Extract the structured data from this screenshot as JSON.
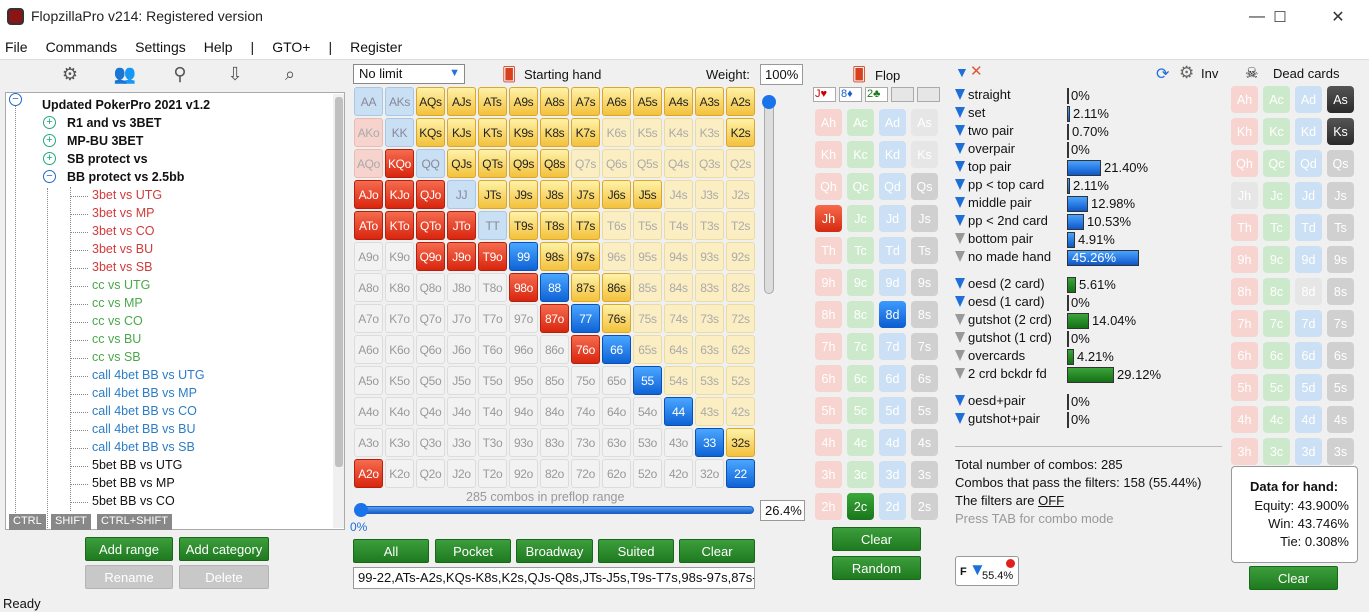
{
  "window": {
    "title": "FlopzillaPro v214: Registered version",
    "minimize": "—",
    "maximize": "☐",
    "close": "✕"
  },
  "menu": [
    "File",
    "Commands",
    "Settings",
    "Help",
    "|",
    "GTO+",
    "|",
    "Register"
  ],
  "status": "Ready",
  "tree": {
    "root": "Updated PokerPro 2021 v1.2",
    "groups": [
      "R1 and vs 3BET",
      "MP-BU 3BET",
      "SB protect vs",
      "BB protect vs 2.5bb"
    ],
    "red": [
      "3bet vs UTG",
      "3bet vs MP",
      "3bet vs CO",
      "3bet vs BU",
      "3bet vs SB"
    ],
    "green": [
      "cc vs UTG",
      "cc vs MP",
      "cc vs CO",
      "cc vs BU",
      "cc vs SB"
    ],
    "blue": [
      "call 4bet BB vs UTG",
      "call 4bet BB vs MP",
      "call 4bet BB vs CO",
      "call 4bet BB vs BU",
      "call 4bet BB vs SB"
    ],
    "black": [
      "5bet BB vs UTG",
      "5bet BB vs MP",
      "5bet BB vs CO"
    ]
  },
  "keys": [
    "CTRL",
    "SHIFT",
    "CTRL+SHIFT"
  ],
  "left_buttons": {
    "add_range": "Add range",
    "add_category": "Add category",
    "rename": "Rename",
    "delete": "Delete"
  },
  "range": {
    "limit": "No limit",
    "starting_hand": "Starting hand",
    "weight_label": "Weight:",
    "weight": "100%",
    "combos_caption": "285 combos in preflop range",
    "slider_min": "0%",
    "percent": "26.4%",
    "buttons": [
      "All",
      "Pocket",
      "Broadway",
      "Suited",
      "Clear"
    ],
    "text": "99-22,ATs-A2s,KQs-K8s,K2s,QJs-Q8s,JTs-J5s,T9s-T7s,98s-97s,87s-8"
  },
  "ranks": [
    "A",
    "K",
    "Q",
    "J",
    "T",
    "9",
    "8",
    "7",
    "6",
    "5",
    "4",
    "3",
    "2"
  ],
  "grid_colors": [
    "lb,lb,y,y,y,y,y,y,y,y,y,y,y",
    "lr,lb,y,y,y,y,y,y,ly,ly,ly,ly,y",
    "lr,r,lb,y,y,y,y,ly,ly,ly,ly,ly,ly",
    "r,r,r,lb,y,y,y,y,y,y,ly,ly,ly",
    "r,r,r,r,lb,y,y,y,ly,ly,ly,ly,ly",
    "g,g,r,r,r,b,y,y,ly,ly,ly,ly,ly",
    "g,g,g,g,g,r,b,y,y,ly,ly,ly,ly",
    "g,g,g,g,g,g,r,b,y,ly,ly,ly,ly",
    "g,g,g,g,g,g,g,r,b,ly,ly,ly,ly",
    "g,g,g,g,g,g,g,g,g,b,ly,ly,ly",
    "g,g,g,g,g,g,g,g,g,g,b,ly,ly",
    "g,g,g,g,g,g,g,g,g,g,g,b,y",
    "r,g,g,g,g,g,g,g,g,g,g,g,b"
  ],
  "flop": {
    "title": "Flop",
    "slots": [
      "J♥",
      "8♦",
      "2♣",
      "",
      ""
    ],
    "clear": "Clear",
    "random": "Random",
    "selected": [
      "Jh",
      "8d",
      "2c"
    ]
  },
  "ranks_flop": [
    "A",
    "K",
    "Q",
    "J",
    "T",
    "9",
    "8",
    "7",
    "6",
    "5",
    "4",
    "3",
    "2"
  ],
  "stats": {
    "made": [
      {
        "label": "straight",
        "value": "0%",
        "frac": 0.0,
        "filter": "blue"
      },
      {
        "label": "set",
        "value": "2.11%",
        "frac": 0.0211,
        "filter": "blue"
      },
      {
        "label": "two pair",
        "value": "0.70%",
        "frac": 0.007,
        "filter": "blue"
      },
      {
        "label": "overpair",
        "value": "0%",
        "frac": 0.0,
        "filter": "blue"
      },
      {
        "label": "top pair",
        "value": "21.40%",
        "frac": 0.214,
        "filter": "blue"
      },
      {
        "label": "pp < top card",
        "value": "2.11%",
        "frac": 0.0211,
        "filter": "blue"
      },
      {
        "label": "middle pair",
        "value": "12.98%",
        "frac": 0.1298,
        "filter": "blue"
      },
      {
        "label": "pp < 2nd card",
        "value": "10.53%",
        "frac": 0.1053,
        "filter": "blue"
      },
      {
        "label": "bottom pair",
        "value": "4.91%",
        "frac": 0.0491,
        "filter": "gray"
      },
      {
        "label": "no made hand",
        "value": "45.26%",
        "frac": 0.4526,
        "filter": "gray"
      }
    ],
    "draws": [
      {
        "label": "oesd (2 card)",
        "value": "5.61%",
        "frac": 0.0561,
        "filter": "blue"
      },
      {
        "label": "oesd (1 card)",
        "value": "0%",
        "frac": 0.0,
        "filter": "blue"
      },
      {
        "label": "gutshot (2 crd)",
        "value": "14.04%",
        "frac": 0.1404,
        "filter": "gray"
      },
      {
        "label": "gutshot (1 crd)",
        "value": "0%",
        "frac": 0.0,
        "filter": "gray"
      },
      {
        "label": "overcards",
        "value": "4.21%",
        "frac": 0.0421,
        "filter": "gray"
      },
      {
        "label": "2 crd bckdr fd",
        "value": "29.12%",
        "frac": 0.2912,
        "filter": "gray"
      }
    ],
    "combo": [
      {
        "label": "oesd+pair",
        "value": "0%",
        "frac": 0.0,
        "filter": "blue"
      },
      {
        "label": "gutshot+pair",
        "value": "0%",
        "frac": 0.0,
        "filter": "blue"
      }
    ],
    "total": "Total number of combos: 285",
    "pass": "Combos that pass the filters: 158 (55.44%)",
    "filters_prefix": "The filters are ",
    "filters_state": "OFF",
    "tab_hint": "Press TAB for combo mode",
    "filter_btn": "55.4%",
    "inv": "Inv"
  },
  "dead": {
    "title": "Dead cards",
    "selected": [
      "As",
      "Ks"
    ],
    "clear": "Clear"
  },
  "hand_data": {
    "title": "Data for hand:",
    "equity": "Equity: 43.900%",
    "win": "Win: 43.746%",
    "tie": "Tie: 0.308%"
  }
}
